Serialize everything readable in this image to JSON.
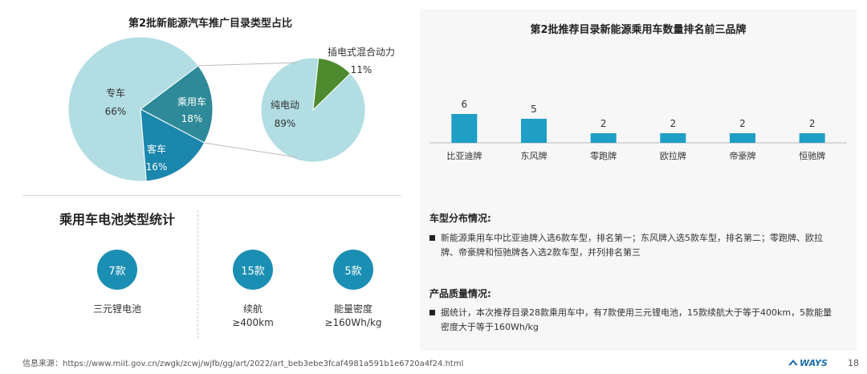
{
  "pie_section": {
    "title": "第2批新能源汽车推广目录类型占比"
  },
  "battery_section": {
    "title": "乘用车电池类型统计",
    "stats": [
      {
        "count": "7款",
        "label_line1": "三元锂电池",
        "label_line2": ""
      },
      {
        "count": "15款",
        "label_line1": "续航",
        "label_line2": "≥400km"
      },
      {
        "count": "5款",
        "label_line1": "能量密度",
        "label_line2": "≥160Wh/kg"
      }
    ]
  },
  "bar_section": {
    "title": "第2批推荐目录新能源乘用车数量排名前三品牌"
  },
  "analysis": {
    "model_distribution_title": "车型分布情况:",
    "model_distribution_text": "新能源乘用车中比亚迪牌入选6款车型，排名第一；东风牌入选5款车型，排名第二；零跑牌、欧拉牌、帝豪牌和恒驰牌各入选2款车型，并列排名第三",
    "quality_title": "产品质量情况:",
    "quality_text": "据统计，本次推荐目录28款乘用车中，有7款使用三元锂电池，15款续航大于等于400km，5款能量密度大于等于160Wh/kg"
  },
  "footer": {
    "source": "信息来源：https://www.miit.gov.cn/zwgk/zcwj/wjfb/gg/art/2022/art_beb3ebe3fcaf4981a591b1e6720a4f24.html",
    "logo": "WAYS",
    "page_number": "18"
  },
  "colors": {
    "pie_light": "#b1dde3",
    "pie_mid": "#2e8a98",
    "pie_dark": "#1b87ad",
    "pie_green": "#4e8a2e",
    "bar": "#1f9ec6",
    "circle": "#1b8fb3"
  },
  "chart_data": [
    {
      "type": "pie",
      "title": "第2批新能源汽车推广目录类型占比",
      "slices": [
        {
          "name": "专车",
          "value": 66,
          "label": "66%"
        },
        {
          "name": "乘用车",
          "value": 18,
          "label": "18%"
        },
        {
          "name": "客车",
          "value": 16,
          "label": "16%"
        }
      ]
    },
    {
      "type": "pie",
      "title": "",
      "slices": [
        {
          "name": "纯电动",
          "value": 89,
          "label": "89%"
        },
        {
          "name": "插电式混合动力",
          "value": 11,
          "label": "11%"
        }
      ]
    },
    {
      "type": "bar",
      "title": "第2批推荐目录新能源乘用车数量排名前三品牌",
      "categories": [
        "比亚迪牌",
        "东风牌",
        "零跑牌",
        "欧拉牌",
        "帝豪牌",
        "恒驰牌"
      ],
      "values": [
        6,
        5,
        2,
        2,
        2,
        2
      ],
      "xlabel": "",
      "ylabel": "",
      "ylim": [
        0,
        6
      ],
      "grid": false
    }
  ]
}
